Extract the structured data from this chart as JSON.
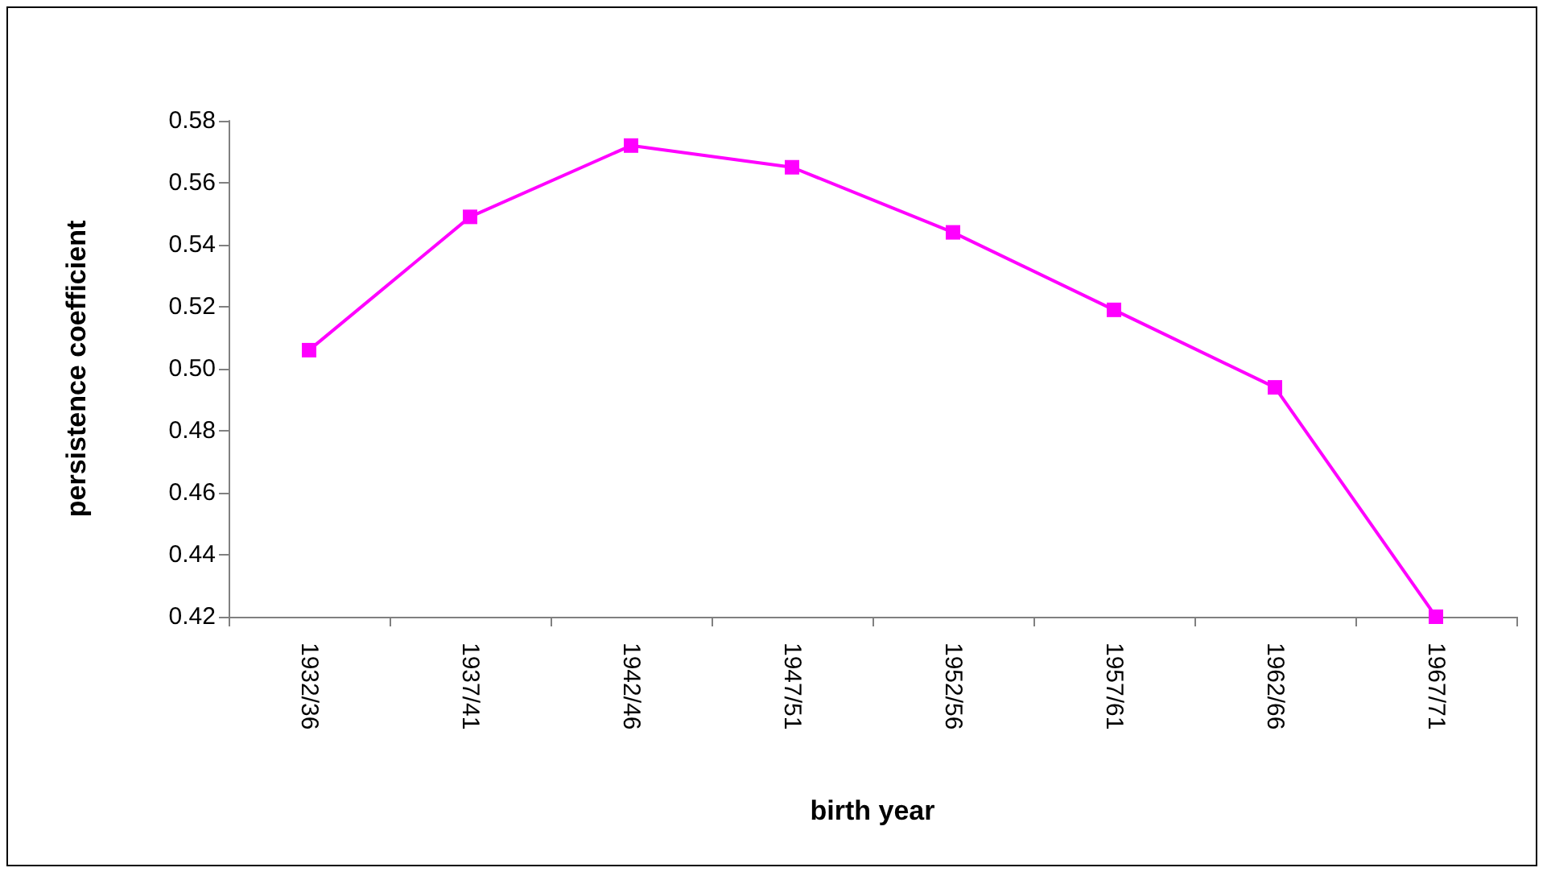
{
  "chart_data": {
    "type": "line",
    "xlabel": "birth year",
    "ylabel": "persistence coefficient",
    "categories": [
      "1932/36",
      "1937/41",
      "1942/46",
      "1947/51",
      "1952/56",
      "1957/61",
      "1962/66",
      "1967/71"
    ],
    "series": [
      {
        "color": "#ff00ff",
        "values": [
          0.506,
          0.549,
          0.572,
          0.565,
          0.544,
          0.519,
          0.494,
          0.42
        ]
      }
    ],
    "ylim": [
      0.42,
      0.58
    ],
    "yticks": [
      0.42,
      0.44,
      0.46,
      0.48,
      {
        "value": 0.5,
        "label": "0.50"
      },
      0.52,
      0.54,
      0.56,
      0.58
    ],
    "grid": false,
    "marker": "square",
    "line_style": "solid"
  }
}
